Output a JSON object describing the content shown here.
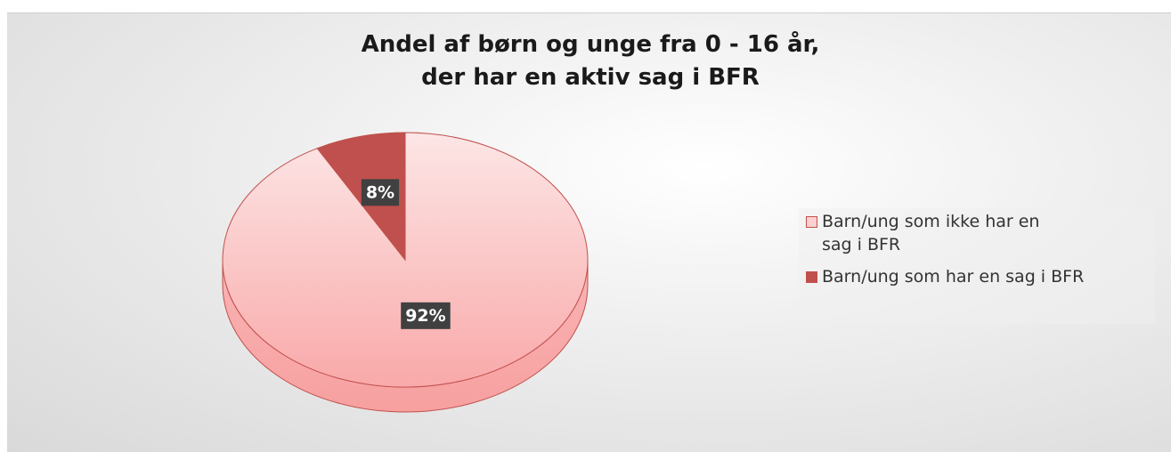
{
  "chart_data": {
    "type": "pie",
    "title": [
      "Andel af børn og unge fra 0 - 16 år,",
      "der har en aktiv sag i BFR"
    ],
    "categories": [
      "Barn/ung som ikke har en sag i BFR",
      "Barn/ung som har en sag i BFR"
    ],
    "values": [
      92,
      8
    ],
    "value_labels": [
      "92%",
      "8%"
    ],
    "colors": [
      "#fbd0d0",
      "#c0504d"
    ],
    "legend": "right"
  }
}
